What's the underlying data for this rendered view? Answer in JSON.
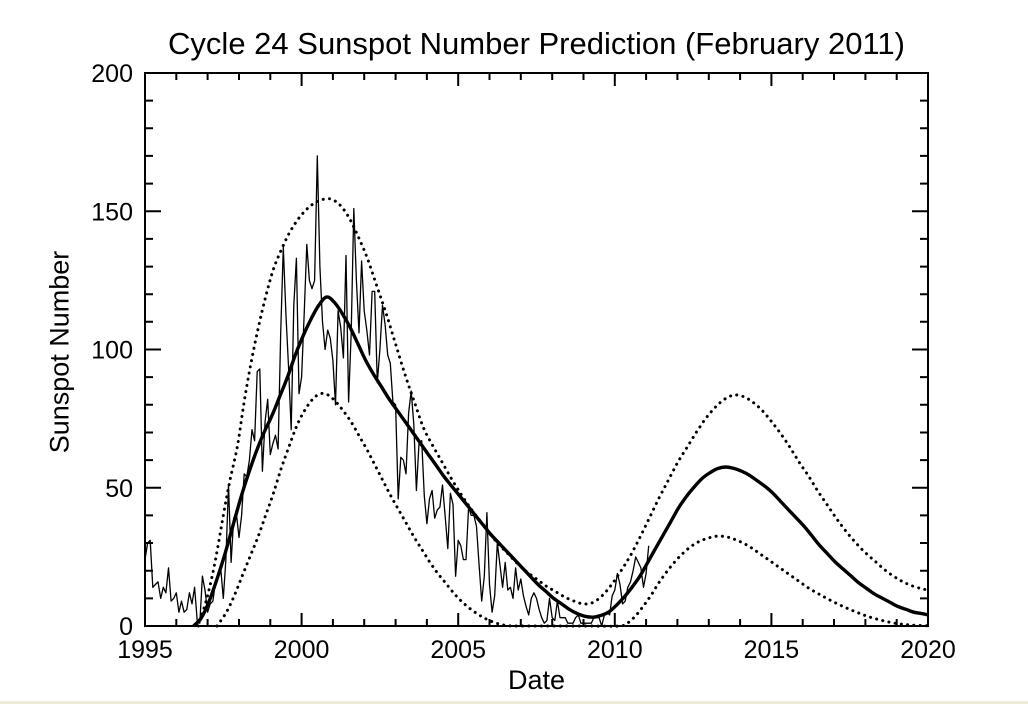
{
  "page": {
    "background": "#ffffff",
    "bottom_edge_color": "#f0ead9"
  },
  "chart_data": {
    "type": "line",
    "title": "Cycle 24 Sunspot Number Prediction (February 2011)",
    "xlabel": "Date",
    "ylabel": "Sunspot Number",
    "xlim": [
      1995,
      2020
    ],
    "ylim": [
      0,
      200
    ],
    "grid": false,
    "legend": "none",
    "xticks": {
      "major": [
        1995,
        2000,
        2005,
        2010,
        2015,
        2020
      ],
      "minor_step": 1
    },
    "yticks": {
      "major": [
        0,
        50,
        100,
        150,
        200
      ],
      "minor_step": 10
    },
    "colors": {
      "line": "#000000",
      "background": "#ffffff"
    },
    "series": [
      {
        "name": "observed-monthly-sunspot-number",
        "style": "solid",
        "width": 1.3,
        "smooth": false,
        "x_start": 1995.0,
        "x_step_years": 0.0833333,
        "values": [
          24,
          30,
          31,
          14,
          15,
          16,
          10,
          14,
          12,
          21,
          9,
          10,
          12,
          5,
          9,
          5,
          6,
          12,
          8,
          14,
          2,
          1,
          18,
          13,
          5,
          8,
          9,
          16,
          19,
          21,
          10,
          24,
          51,
          23,
          39,
          41,
          32,
          40,
          55,
          54,
          60,
          71,
          67,
          92,
          93,
          56,
          74,
          82,
          62,
          66,
          69,
          64,
          106,
          137,
          113,
          94,
          71,
          116,
          133,
          84,
          90,
          113,
          138,
          125,
          122,
          125,
          170,
          130,
          110,
          100,
          107,
          104,
          96,
          80,
          114,
          108,
          97,
          134,
          81,
          106,
          151,
          125,
          106,
          132,
          114,
          107,
          98,
          121,
          121,
          88,
          100,
          116,
          109,
          98,
          95,
          81,
          80,
          46,
          61,
          60,
          55,
          77,
          85,
          73,
          49,
          66,
          67,
          47,
          37,
          46,
          49,
          39,
          42,
          43,
          51,
          40,
          28,
          48,
          44,
          18,
          31,
          29,
          24,
          24,
          43,
          40,
          40,
          36,
          22,
          9,
          18,
          41,
          15,
          5,
          11,
          30,
          22,
          14,
          23,
          13,
          14,
          10,
          21,
          13,
          17,
          11,
          7,
          4,
          10,
          12,
          10,
          6,
          3,
          1,
          2,
          10,
          3,
          2,
          9,
          3,
          3,
          3,
          1,
          1,
          1,
          3,
          4,
          1,
          1,
          1,
          1,
          1,
          3,
          3,
          3,
          0,
          4,
          5,
          4,
          11,
          13,
          19,
          15,
          8,
          9,
          14,
          16,
          20,
          25,
          23,
          21,
          14,
          19,
          29
        ]
      },
      {
        "name": "predicted-smoothed-sunspot-number",
        "style": "solid",
        "width": 3.4,
        "smooth": true,
        "points": [
          [
            1996.55,
            0
          ],
          [
            1996.8,
            3
          ],
          [
            1997.05,
            9
          ],
          [
            1997.3,
            17
          ],
          [
            1997.55,
            26
          ],
          [
            1997.8,
            36
          ],
          [
            1998.05,
            46
          ],
          [
            1998.3,
            55
          ],
          [
            1998.55,
            63
          ],
          [
            1998.8,
            70
          ],
          [
            1999.05,
            76
          ],
          [
            1999.3,
            83
          ],
          [
            1999.55,
            90
          ],
          [
            1999.8,
            98
          ],
          [
            2000.05,
            105
          ],
          [
            2000.3,
            111
          ],
          [
            2000.55,
            116
          ],
          [
            2000.8,
            119
          ],
          [
            2001.05,
            117
          ],
          [
            2001.3,
            113
          ],
          [
            2001.55,
            108
          ],
          [
            2001.8,
            102
          ],
          [
            2002.05,
            96
          ],
          [
            2002.3,
            91
          ],
          [
            2002.55,
            86.5
          ],
          [
            2002.8,
            82
          ],
          [
            2003.05,
            78
          ],
          [
            2003.3,
            74
          ],
          [
            2003.55,
            70
          ],
          [
            2003.8,
            66
          ],
          [
            2004.05,
            62
          ],
          [
            2004.3,
            58
          ],
          [
            2004.55,
            54
          ],
          [
            2004.8,
            50.5
          ],
          [
            2005.05,
            47
          ],
          [
            2005.3,
            43.5
          ],
          [
            2005.55,
            40
          ],
          [
            2005.8,
            36.5
          ],
          [
            2006.05,
            33
          ],
          [
            2006.3,
            30
          ],
          [
            2006.55,
            27
          ],
          [
            2006.8,
            24
          ],
          [
            2007.05,
            21
          ],
          [
            2007.3,
            18
          ],
          [
            2007.55,
            15
          ],
          [
            2007.8,
            12.5
          ],
          [
            2008.05,
            10
          ],
          [
            2008.3,
            8
          ],
          [
            2008.55,
            6
          ],
          [
            2008.8,
            4.5
          ],
          [
            2009.05,
            3.5
          ],
          [
            2009.3,
            3.2
          ],
          [
            2009.55,
            3.8
          ],
          [
            2009.8,
            5
          ],
          [
            2010.05,
            7.5
          ],
          [
            2010.3,
            10.5
          ],
          [
            2010.55,
            14
          ],
          [
            2010.8,
            18
          ],
          [
            2011.05,
            23
          ],
          [
            2011.3,
            28
          ],
          [
            2011.55,
            33
          ],
          [
            2011.8,
            38
          ],
          [
            2012.05,
            43
          ],
          [
            2012.3,
            47
          ],
          [
            2012.55,
            50.5
          ],
          [
            2012.8,
            53.5
          ],
          [
            2013.05,
            55.5
          ],
          [
            2013.3,
            57
          ],
          [
            2013.55,
            57.5
          ],
          [
            2013.8,
            57
          ],
          [
            2014.05,
            56
          ],
          [
            2014.3,
            54.5
          ],
          [
            2014.55,
            52.5
          ],
          [
            2014.8,
            50.5
          ],
          [
            2015.05,
            48
          ],
          [
            2015.3,
            45
          ],
          [
            2015.55,
            42
          ],
          [
            2015.8,
            39
          ],
          [
            2016.05,
            36
          ],
          [
            2016.3,
            32.5
          ],
          [
            2016.55,
            29
          ],
          [
            2016.8,
            26
          ],
          [
            2017.05,
            23
          ],
          [
            2017.3,
            20.5
          ],
          [
            2017.55,
            18
          ],
          [
            2017.8,
            15.5
          ],
          [
            2018.05,
            13.5
          ],
          [
            2018.3,
            11.5
          ],
          [
            2018.55,
            10
          ],
          [
            2018.8,
            8.5
          ],
          [
            2019.05,
            7
          ],
          [
            2019.3,
            6
          ],
          [
            2019.55,
            5
          ],
          [
            2019.8,
            4.5
          ],
          [
            2020,
            4
          ]
        ]
      },
      {
        "name": "prediction-upper-bound",
        "style": "dotted",
        "width": 3,
        "smooth": true,
        "points": [
          [
            1996.7,
            0
          ],
          [
            1997,
            11
          ],
          [
            1997.25,
            24
          ],
          [
            1997.5,
            40
          ],
          [
            1997.7,
            52
          ],
          [
            1997.95,
            65
          ],
          [
            1998.15,
            80
          ],
          [
            1998.35,
            93
          ],
          [
            1998.6,
            107
          ],
          [
            1998.85,
            119
          ],
          [
            1999.1,
            129
          ],
          [
            1999.35,
            136
          ],
          [
            1999.6,
            142
          ],
          [
            1999.85,
            146.5
          ],
          [
            2000.1,
            150
          ],
          [
            2000.35,
            152.5
          ],
          [
            2000.6,
            154
          ],
          [
            2000.9,
            154.5
          ],
          [
            2001.2,
            152.5
          ],
          [
            2001.5,
            148
          ],
          [
            2001.8,
            141
          ],
          [
            2002.1,
            133
          ],
          [
            2002.4,
            123
          ],
          [
            2002.7,
            113
          ],
          [
            2003,
            102
          ],
          [
            2003.3,
            91
          ],
          [
            2003.6,
            81
          ],
          [
            2003.9,
            71.5
          ],
          [
            2004.2,
            65
          ],
          [
            2004.5,
            59
          ],
          [
            2004.8,
            53
          ],
          [
            2005.1,
            47.5
          ],
          [
            2005.4,
            42.5
          ],
          [
            2005.7,
            38
          ],
          [
            2006,
            33.5
          ],
          [
            2006.3,
            29.5
          ],
          [
            2006.6,
            26
          ],
          [
            2006.9,
            22.5
          ],
          [
            2007.2,
            19.5
          ],
          [
            2007.5,
            17
          ],
          [
            2007.8,
            14.5
          ],
          [
            2008.1,
            12.5
          ],
          [
            2008.4,
            10.5
          ],
          [
            2008.7,
            9
          ],
          [
            2009,
            8
          ],
          [
            2009.3,
            8.5
          ],
          [
            2009.6,
            11
          ],
          [
            2009.9,
            15
          ],
          [
            2010.2,
            20
          ],
          [
            2010.5,
            25.5
          ],
          [
            2010.8,
            32
          ],
          [
            2011.1,
            39
          ],
          [
            2011.4,
            46
          ],
          [
            2011.7,
            52.5
          ],
          [
            2012,
            59
          ],
          [
            2012.3,
            64.5
          ],
          [
            2012.6,
            70
          ],
          [
            2012.9,
            75
          ],
          [
            2013.2,
            79
          ],
          [
            2013.5,
            82
          ],
          [
            2013.8,
            83.5
          ],
          [
            2014.1,
            83
          ],
          [
            2014.4,
            81
          ],
          [
            2014.7,
            78
          ],
          [
            2015,
            74
          ],
          [
            2015.3,
            69.5
          ],
          [
            2015.6,
            64.5
          ],
          [
            2015.9,
            59
          ],
          [
            2016.2,
            54
          ],
          [
            2016.5,
            48.5
          ],
          [
            2016.8,
            43.5
          ],
          [
            2017.1,
            38.5
          ],
          [
            2017.4,
            34
          ],
          [
            2017.7,
            30
          ],
          [
            2018,
            26.5
          ],
          [
            2018.3,
            23.5
          ],
          [
            2018.6,
            20.5
          ],
          [
            2018.9,
            18
          ],
          [
            2019.2,
            16
          ],
          [
            2019.5,
            14.5
          ],
          [
            2019.8,
            13.5
          ],
          [
            2020,
            13
          ]
        ]
      },
      {
        "name": "prediction-lower-bound",
        "style": "dotted",
        "width": 3,
        "smooth": true,
        "points": [
          [
            1997.3,
            0
          ],
          [
            1997.6,
            5
          ],
          [
            1997.85,
            11
          ],
          [
            1998.1,
            18
          ],
          [
            1998.35,
            25
          ],
          [
            1998.6,
            32
          ],
          [
            1998.85,
            40
          ],
          [
            1999.1,
            48
          ],
          [
            1999.35,
            57
          ],
          [
            1999.6,
            65
          ],
          [
            1999.85,
            72.5
          ],
          [
            2000.1,
            78
          ],
          [
            2000.35,
            82
          ],
          [
            2000.6,
            84
          ],
          [
            2000.85,
            83.5
          ],
          [
            2001.1,
            81
          ],
          [
            2001.35,
            77.5
          ],
          [
            2001.6,
            73.5
          ],
          [
            2001.85,
            68.5
          ],
          [
            2002.1,
            63.5
          ],
          [
            2002.35,
            58
          ],
          [
            2002.6,
            52.5
          ],
          [
            2002.85,
            47
          ],
          [
            2003.1,
            42
          ],
          [
            2003.35,
            37
          ],
          [
            2003.6,
            32
          ],
          [
            2003.85,
            27.5
          ],
          [
            2004.1,
            23
          ],
          [
            2004.35,
            19
          ],
          [
            2004.6,
            15.5
          ],
          [
            2004.85,
            12
          ],
          [
            2005.1,
            9
          ],
          [
            2005.35,
            6.5
          ],
          [
            2005.6,
            4.5
          ],
          [
            2005.85,
            2.8
          ],
          [
            2006.1,
            1.5
          ],
          [
            2006.35,
            0.6
          ],
          [
            2006.6,
            0.1
          ],
          [
            2006.9,
            0
          ],
          [
            2007.6,
            0
          ],
          [
            2008.4,
            0
          ],
          [
            2009.2,
            0
          ],
          [
            2010.15,
            0
          ],
          [
            2010.4,
            1
          ],
          [
            2010.65,
            3.5
          ],
          [
            2010.9,
            7
          ],
          [
            2011.15,
            11
          ],
          [
            2011.4,
            15.5
          ],
          [
            2011.65,
            19.5
          ],
          [
            2011.9,
            23
          ],
          [
            2012.15,
            26
          ],
          [
            2012.4,
            28.5
          ],
          [
            2012.65,
            30.3
          ],
          [
            2012.9,
            31.5
          ],
          [
            2013.15,
            32.3
          ],
          [
            2013.4,
            32.5
          ],
          [
            2013.65,
            32
          ],
          [
            2013.9,
            31
          ],
          [
            2014.15,
            29.7
          ],
          [
            2014.4,
            28
          ],
          [
            2014.65,
            26
          ],
          [
            2014.9,
            24
          ],
          [
            2015.15,
            22
          ],
          [
            2015.4,
            20
          ],
          [
            2015.65,
            18
          ],
          [
            2015.9,
            16
          ],
          [
            2016.15,
            14
          ],
          [
            2016.4,
            12.3
          ],
          [
            2016.65,
            10.7
          ],
          [
            2016.9,
            9.2
          ],
          [
            2017.15,
            7.8
          ],
          [
            2017.4,
            6.5
          ],
          [
            2017.65,
            5.3
          ],
          [
            2017.9,
            4.2
          ],
          [
            2018.15,
            3.2
          ],
          [
            2018.4,
            2.4
          ],
          [
            2018.65,
            1.7
          ],
          [
            2018.9,
            1.1
          ],
          [
            2019.15,
            0.7
          ],
          [
            2019.4,
            0.4
          ],
          [
            2019.65,
            0.2
          ],
          [
            2020,
            0.1
          ]
        ]
      }
    ]
  }
}
